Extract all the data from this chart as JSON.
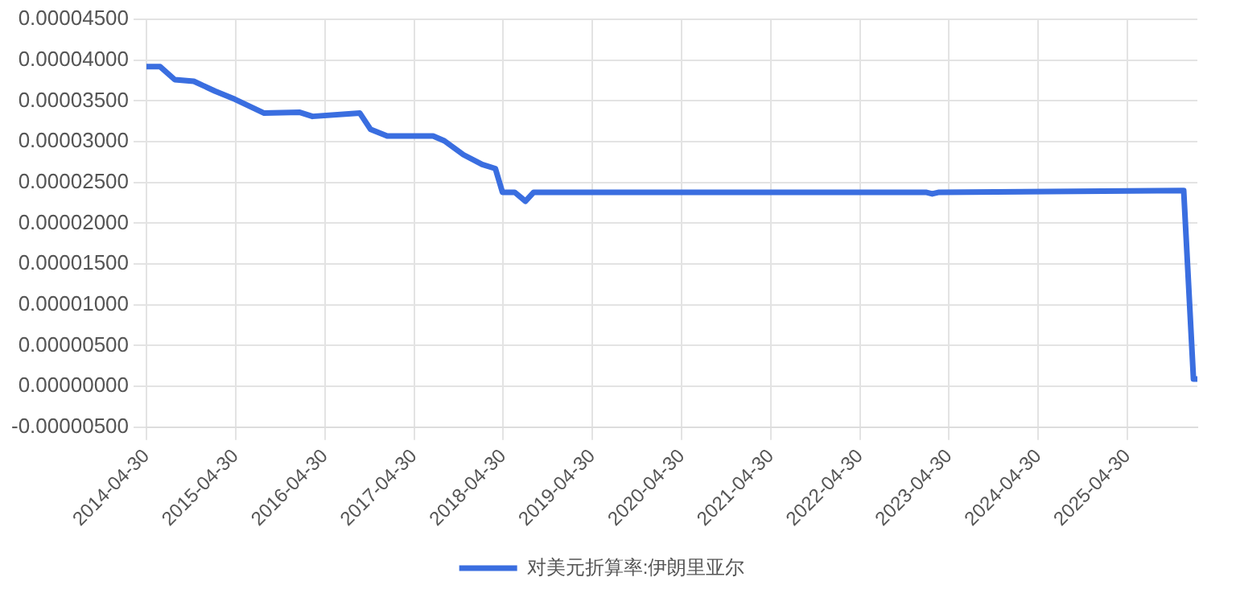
{
  "chart_data": {
    "type": "line",
    "x": [
      "2014-04-30",
      "2014-06-25",
      "2014-08-24",
      "2014-11-10",
      "2015-02-05",
      "2015-04-27",
      "2015-08-25",
      "2016-01-18",
      "2016-03-10",
      "2016-09-20",
      "2016-11-03",
      "2017-01-10",
      "2017-07-17",
      "2017-09-01",
      "2017-11-18",
      "2018-02-03",
      "2018-03-29",
      "2018-04-27",
      "2018-06-16",
      "2018-07-30",
      "2018-09-02",
      "2023-01-25",
      "2023-02-20",
      "2023-03-20",
      "2025-12-16",
      "2026-01-25",
      "2026-02-08"
    ],
    "series": [
      {
        "name": "对美元折算率:伊朗里亚尔",
        "color": "#3a6ee0",
        "values": [
          3.92e-05,
          3.92e-05,
          3.76e-05,
          3.74e-05,
          3.62e-05,
          3.52e-05,
          3.35e-05,
          3.36e-05,
          3.31e-05,
          3.35e-05,
          3.15e-05,
          3.07e-05,
          3.07e-05,
          3.01e-05,
          2.84e-05,
          2.72e-05,
          2.67e-05,
          2.38e-05,
          2.38e-05,
          2.27e-05,
          2.38e-05,
          2.38e-05,
          2.36e-05,
          2.38e-05,
          2.4e-05,
          9e-07,
          9e-07
        ]
      }
    ],
    "xlim": [
      "2014-04-30",
      "2026-02-10"
    ],
    "xticks": [
      "2014-04-30",
      "2015-04-30",
      "2016-04-30",
      "2017-04-30",
      "2018-04-30",
      "2019-04-30",
      "2020-04-30",
      "2021-04-30",
      "2022-04-30",
      "2023-04-30",
      "2024-04-30",
      "2025-04-30"
    ],
    "ylim": [
      -5e-06,
      4.5e-05
    ],
    "yticks": [
      {
        "value": -5e-06,
        "label": "-0.00000500"
      },
      {
        "value": 0,
        "label": "0.00000000"
      },
      {
        "value": 5e-06,
        "label": "0.00000500"
      },
      {
        "value": 1e-05,
        "label": "0.00001000"
      },
      {
        "value": 1.5e-05,
        "label": "0.00001500"
      },
      {
        "value": 2e-05,
        "label": "0.00002000"
      },
      {
        "value": 2.5e-05,
        "label": "0.00002500"
      },
      {
        "value": 3e-05,
        "label": "0.00003000"
      },
      {
        "value": 3.5e-05,
        "label": "0.00003500"
      },
      {
        "value": 4e-05,
        "label": "0.00004000"
      },
      {
        "value": 4.5e-05,
        "label": "0.00004500"
      }
    ],
    "grid": true,
    "legend": "bottom",
    "marker": "none",
    "line_style": "solid"
  }
}
